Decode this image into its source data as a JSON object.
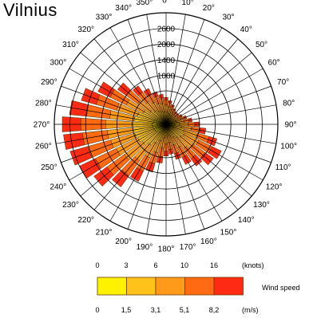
{
  "chart_data": {
    "type": "wind-rose",
    "title": "Vilnius",
    "ring_labels": [
      "2600",
      "2000",
      "1400",
      "1000"
    ],
    "direction_labels": [
      "0°",
      "10°",
      "20°",
      "30°",
      "40°",
      "50°",
      "60°",
      "70°",
      "80°",
      "90°",
      "100°",
      "110°",
      "120°",
      "130°",
      "140°",
      "150°",
      "160°",
      "170°",
      "180°",
      "190°",
      "200°",
      "210°",
      "220°",
      "230°",
      "240°",
      "250°",
      "260°",
      "270°",
      "280°",
      "290°",
      "300°",
      "310°",
      "320°",
      "330°",
      "340°",
      "350°"
    ],
    "speed_classes_colors": [
      "#fff200",
      "#ffc21a",
      "#ff9a1a",
      "#ff6a12",
      "#ff2a14"
    ],
    "legend": {
      "knots_ticks": [
        "0",
        "3",
        "6",
        "10",
        "16"
      ],
      "knots_unit": "(knots)",
      "label": "Wind speed",
      "ms_ticks": [
        "0",
        "1,5",
        "3,1",
        "5,1",
        "8,2"
      ],
      "ms_unit": "(m/s)"
    },
    "directions_deg": [
      0,
      10,
      20,
      30,
      40,
      50,
      60,
      70,
      80,
      90,
      100,
      110,
      120,
      130,
      140,
      150,
      160,
      170,
      180,
      190,
      200,
      210,
      220,
      230,
      240,
      250,
      260,
      270,
      280,
      290,
      300,
      310,
      320,
      330,
      340,
      350
    ],
    "frequency_by_speed_class": [
      [
        120,
        110,
        100,
        90,
        80,
        80,
        90,
        100,
        110,
        130,
        150,
        180,
        190,
        170,
        150,
        130,
        110,
        100,
        110,
        130,
        160,
        200,
        240,
        270,
        290,
        300,
        310,
        320,
        300,
        280,
        240,
        190,
        160,
        140,
        130,
        125
      ],
      [
        160,
        150,
        130,
        110,
        100,
        100,
        110,
        130,
        150,
        180,
        210,
        260,
        290,
        270,
        240,
        210,
        180,
        150,
        160,
        190,
        240,
        300,
        360,
        410,
        440,
        460,
        470,
        480,
        450,
        410,
        350,
        280,
        230,
        200,
        180,
        170
      ],
      [
        170,
        150,
        130,
        110,
        100,
        100,
        110,
        130,
        160,
        200,
        240,
        320,
        370,
        350,
        310,
        270,
        220,
        180,
        190,
        230,
        290,
        370,
        450,
        520,
        560,
        580,
        600,
        610,
        570,
        510,
        440,
        350,
        280,
        240,
        210,
        190
      ],
      [
        120,
        100,
        80,
        70,
        60,
        60,
        70,
        90,
        120,
        160,
        200,
        280,
        340,
        330,
        290,
        250,
        200,
        160,
        170,
        210,
        270,
        350,
        430,
        500,
        540,
        560,
        580,
        580,
        540,
        490,
        420,
        330,
        260,
        210,
        170,
        140
      ],
      [
        60,
        50,
        40,
        30,
        30,
        30,
        40,
        50,
        70,
        100,
        130,
        190,
        240,
        240,
        210,
        180,
        140,
        110,
        110,
        150,
        200,
        260,
        320,
        370,
        400,
        420,
        440,
        430,
        400,
        360,
        310,
        240,
        180,
        140,
        100,
        80
      ]
    ]
  }
}
